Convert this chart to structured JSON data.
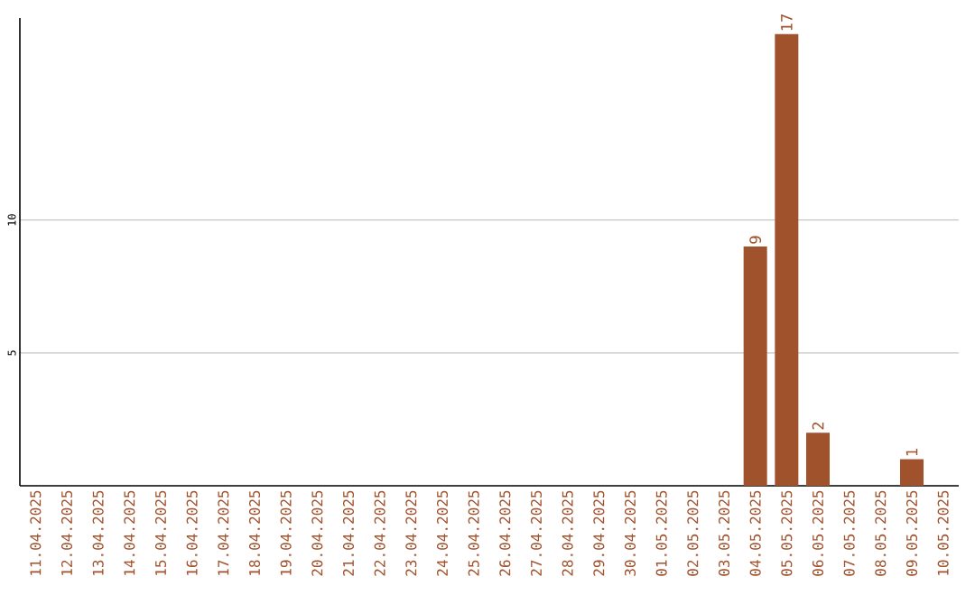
{
  "chart_data": {
    "type": "bar",
    "categories": [
      "11.04.2025",
      "12.04.2025",
      "13.04.2025",
      "14.04.2025",
      "15.04.2025",
      "16.04.2025",
      "17.04.2025",
      "18.04.2025",
      "19.04.2025",
      "20.04.2025",
      "21.04.2025",
      "22.04.2025",
      "23.04.2025",
      "24.04.2025",
      "25.04.2025",
      "26.04.2025",
      "27.04.2025",
      "28.04.2025",
      "29.04.2025",
      "30.04.2025",
      "01.05.2025",
      "02.05.2025",
      "03.05.2025",
      "04.05.2025",
      "05.05.2025",
      "06.05.2025",
      "07.05.2025",
      "08.05.2025",
      "09.05.2025",
      "10.05.2025"
    ],
    "values": [
      0,
      0,
      0,
      0,
      0,
      0,
      0,
      0,
      0,
      0,
      0,
      0,
      0,
      0,
      0,
      0,
      0,
      0,
      0,
      0,
      0,
      0,
      0,
      9,
      17,
      2,
      0,
      0,
      1,
      0
    ],
    "value_labels": [
      null,
      null,
      null,
      null,
      null,
      null,
      null,
      null,
      null,
      null,
      null,
      null,
      null,
      null,
      null,
      null,
      null,
      null,
      null,
      null,
      null,
      null,
      null,
      "9",
      "17",
      "2",
      null,
      null,
      "1",
      null
    ],
    "color": "#a0522d",
    "ylim": [
      0,
      17.6
    ],
    "yticks": [
      5,
      10
    ],
    "grid": "y"
  }
}
